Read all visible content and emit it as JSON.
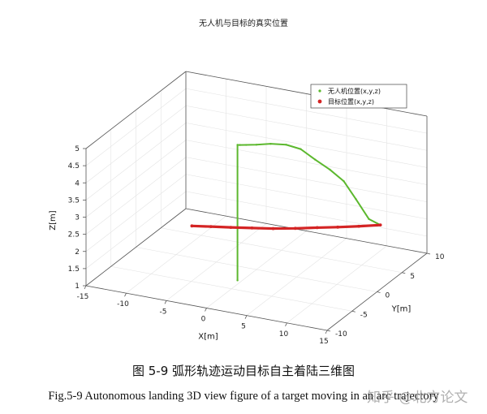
{
  "chart_data": {
    "type": "line3d",
    "title": "无人机与目标的真实位置",
    "xlabel": "X[m]",
    "ylabel": "Y[m]",
    "zlabel": "Z[m]",
    "xlim": [
      -15,
      15
    ],
    "ylim": [
      -10,
      10
    ],
    "zlim": [
      1,
      5
    ],
    "xticks": [
      "-15",
      "-10",
      "-5",
      "0",
      "5",
      "10",
      "15"
    ],
    "yticks": [
      "-10",
      "-5",
      "0",
      "5",
      "10"
    ],
    "zticks": [
      "1",
      "1.5",
      "2",
      "2.5",
      "3",
      "3.5",
      "4",
      "4.5",
      "5"
    ],
    "grid": true,
    "legend_position": "top-right",
    "series": [
      {
        "name": "无人机位置(x,y,z)",
        "color": "#5cb82e",
        "x": [
          -0.5,
          -0.5,
          -0.2,
          0.5,
          1.6,
          3.0,
          4.5,
          5.8,
          7.0,
          8.2,
          9.3,
          10.2,
          11.2,
          12.0,
          12.0
        ],
        "y": [
          -3.0,
          -3.0,
          -3.0,
          -2.9,
          -2.6,
          -2.0,
          -1.3,
          -0.5,
          0.5,
          1.5,
          2.5,
          3.5,
          4.5,
          5.5,
          5.5
        ],
        "z": [
          1.0,
          4.95,
          4.96,
          4.98,
          5.0,
          5.02,
          4.98,
          4.82,
          4.45,
          4.1,
          3.7,
          3.1,
          2.45,
          2.2,
          2.2
        ]
      },
      {
        "name": "目标位置(x,y,z)",
        "color": "#d42424",
        "x": [
          -6.8,
          -4.8,
          -2.7,
          -0.5,
          1.7,
          3.9,
          6.0,
          8.0,
          10.0,
          12.0
        ],
        "y": [
          -2.0,
          -1.4,
          -0.8,
          -0.1,
          0.6,
          1.5,
          2.5,
          3.4,
          4.4,
          5.5
        ],
        "z": [
          2.2,
          2.2,
          2.2,
          2.2,
          2.2,
          2.2,
          2.2,
          2.2,
          2.2,
          2.2
        ]
      }
    ]
  },
  "captions": {
    "cn": "图 5-9 弧形轨迹运动目标自主着陆三维图",
    "en": "Fig.5-9 Autonomous landing 3D view figure of a target moving in an arc trajectory"
  },
  "watermark": "知乎 @北方论文"
}
